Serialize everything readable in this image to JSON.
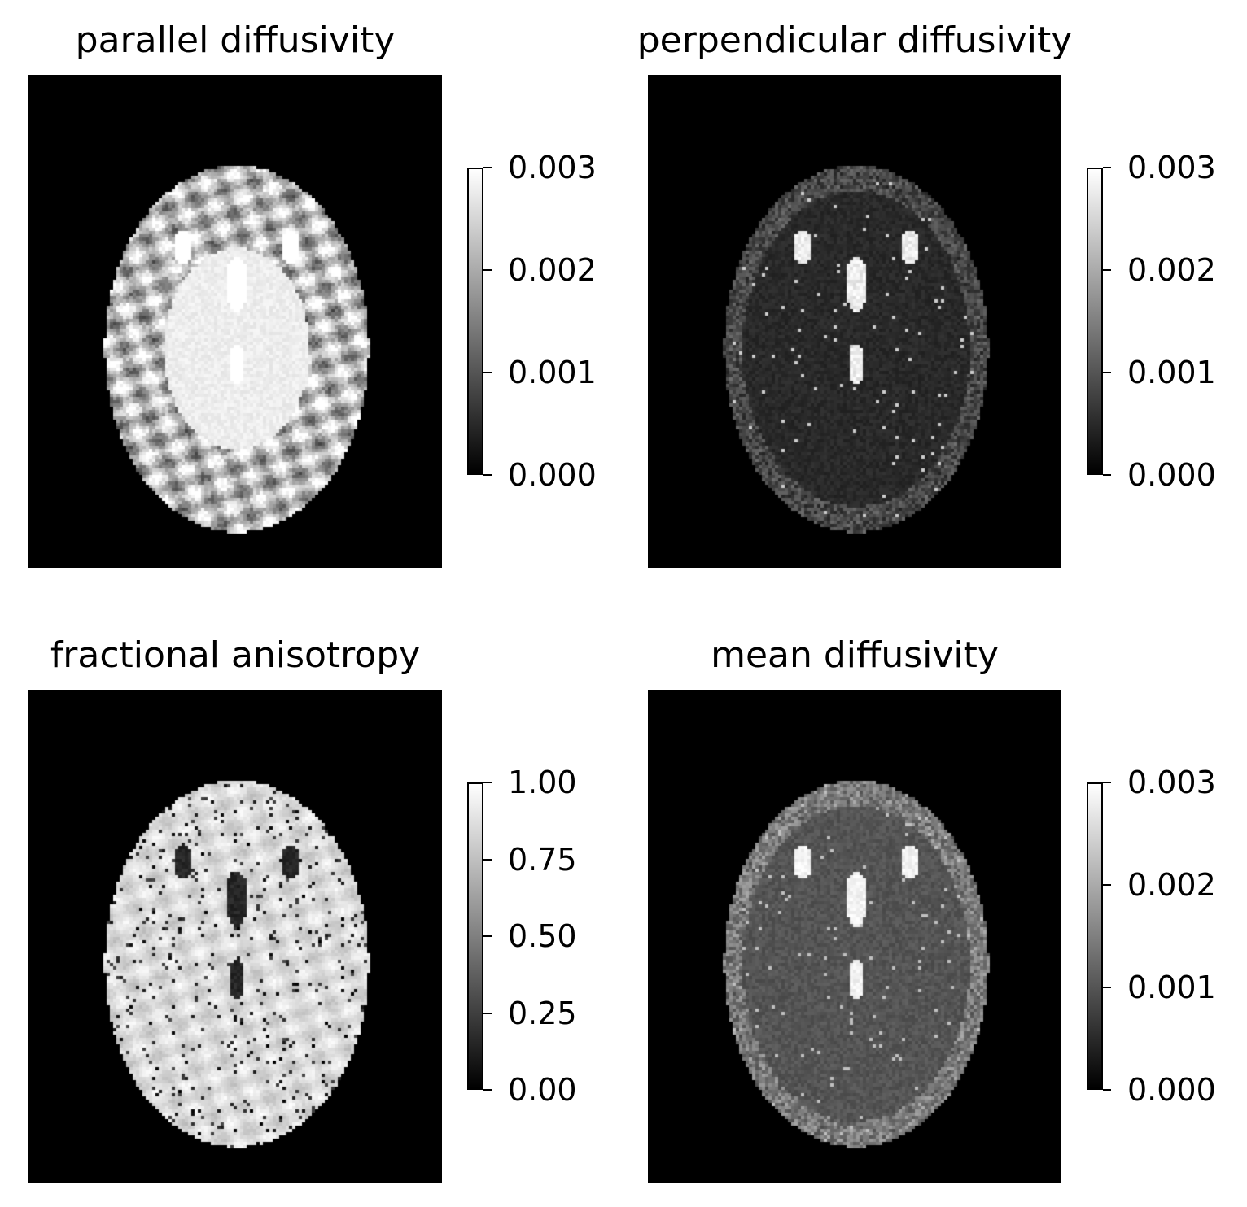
{
  "chart_data": [
    {
      "type": "heatmap",
      "title": "parallel diffusivity",
      "colormap": "gray",
      "colorbar": {
        "vmin": 0.0,
        "vmax": 0.003,
        "ticks": [
          "0.000",
          "0.001",
          "0.002",
          "0.003"
        ],
        "tick_values": [
          0.0,
          0.001,
          0.002,
          0.003
        ]
      },
      "axes": "off",
      "brain_level": 0.95,
      "features": "bright interior saturated near max, cortical folds mid-gray"
    },
    {
      "type": "heatmap",
      "title": "perpendicular diffusivity",
      "colormap": "gray",
      "colorbar": {
        "vmin": 0.0,
        "vmax": 0.003,
        "ticks": [
          "0.000",
          "0.001",
          "0.002",
          "0.003"
        ],
        "tick_values": [
          0.0,
          0.001,
          0.002,
          0.003
        ]
      },
      "axes": "off",
      "brain_level": 0.15,
      "features": "dark tissue with bright ventricles and CSF spots"
    },
    {
      "type": "heatmap",
      "title": "fractional anisotropy",
      "colormap": "gray",
      "colorbar": {
        "vmin": 0.0,
        "vmax": 1.0,
        "ticks": [
          "0.00",
          "0.25",
          "0.50",
          "0.75",
          "1.00"
        ],
        "tick_values": [
          0.0,
          0.25,
          0.5,
          0.75,
          1.0
        ]
      },
      "axes": "off",
      "brain_level": 0.88,
      "features": "bright tissue with dark ventricles and speckle"
    },
    {
      "type": "heatmap",
      "title": "mean diffusivity",
      "colormap": "gray",
      "colorbar": {
        "vmin": 0.0,
        "vmax": 0.003,
        "ticks": [
          "0.000",
          "0.001",
          "0.002",
          "0.003"
        ],
        "tick_values": [
          0.0,
          0.001,
          0.002,
          0.003
        ]
      },
      "axes": "off",
      "brain_level": 0.3,
      "features": "mid-dark tissue with bright ventricles"
    }
  ]
}
